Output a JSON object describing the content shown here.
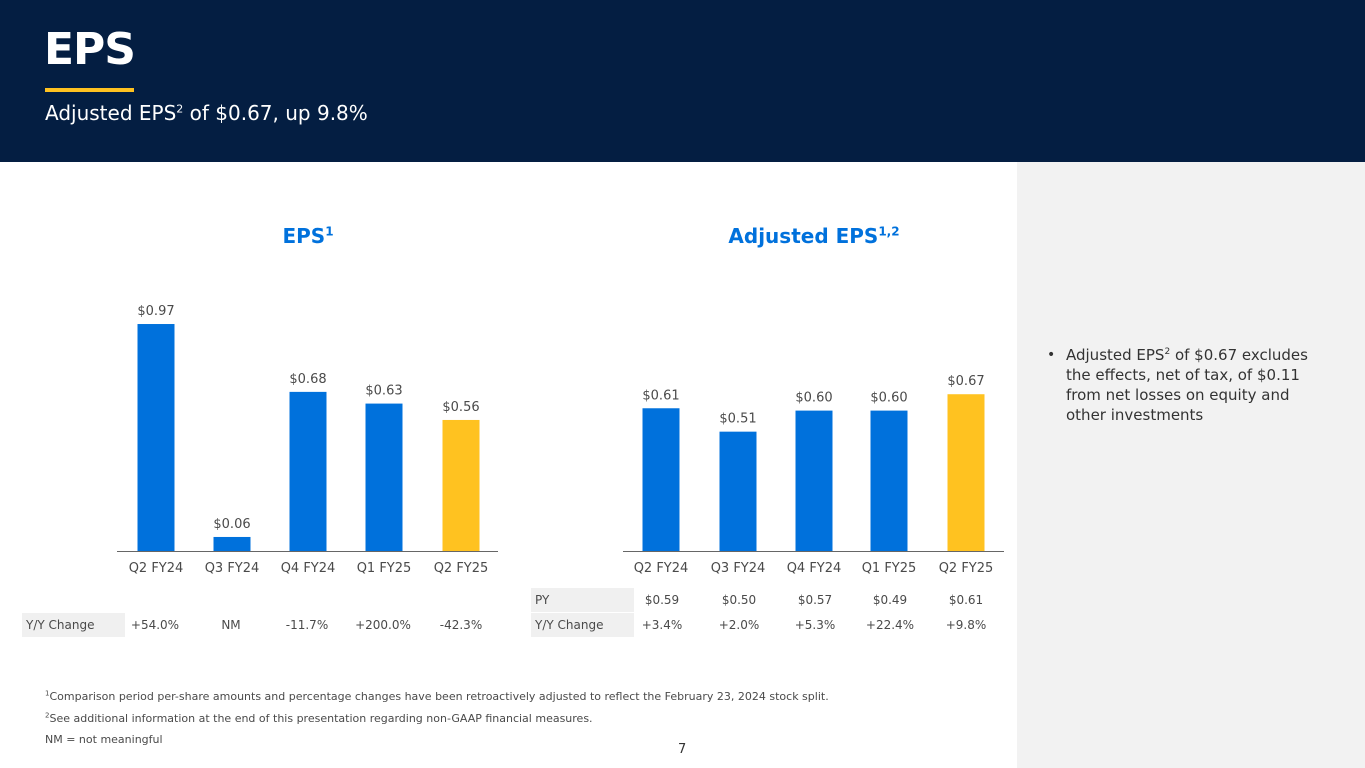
{
  "header": {
    "title": "EPS",
    "subtitle_pre": "Adjusted EPS",
    "subtitle_sup": "2",
    "subtitle_post": " of $0.67, up 9.8%"
  },
  "colors": {
    "navy": "#041e42",
    "blue": "#0071dc",
    "yellow": "#ffc220"
  },
  "chart_data": [
    {
      "type": "bar",
      "title": "EPS",
      "title_sup": "1",
      "categories": [
        "Q2 FY24",
        "Q3 FY24",
        "Q4 FY24",
        "Q1 FY25",
        "Q2 FY25"
      ],
      "values": [
        0.97,
        0.06,
        0.68,
        0.63,
        0.56
      ],
      "value_labels": [
        "$0.97",
        "$0.06",
        "$0.68",
        "$0.63",
        "$0.56"
      ],
      "highlight_index": 4,
      "ylim": [
        0,
        1.0
      ],
      "rows": [
        {
          "label": "Y/Y Change",
          "values": [
            "+54.0%",
            "NM",
            "-11.7%",
            "+200.0%",
            "-42.3%"
          ]
        }
      ]
    },
    {
      "type": "bar",
      "title": "Adjusted EPS",
      "title_sup": "1,2",
      "categories": [
        "Q2 FY24",
        "Q3 FY24",
        "Q4 FY24",
        "Q1 FY25",
        "Q2 FY25"
      ],
      "values": [
        0.61,
        0.51,
        0.6,
        0.6,
        0.67
      ],
      "value_labels": [
        "$0.61",
        "$0.51",
        "$0.60",
        "$0.60",
        "$0.67"
      ],
      "highlight_index": 4,
      "ylim": [
        0,
        1.0
      ],
      "rows": [
        {
          "label": "PY",
          "values": [
            "$0.59",
            "$0.50",
            "$0.57",
            "$0.49",
            "$0.61"
          ]
        },
        {
          "label": "Y/Y Change",
          "values": [
            "+3.4%",
            "+2.0%",
            "+5.3%",
            "+22.4%",
            "+9.8%"
          ]
        }
      ]
    }
  ],
  "sidebar": {
    "bullet_pre": "Adjusted EPS",
    "bullet_sup": "2",
    "bullet_post": " of $0.67 excludes the effects, net of tax, of $0.11 from net losses on equity and other investments"
  },
  "footnotes": {
    "note1_sup": "1",
    "note1": "Comparison period per-share amounts and percentage changes have been retroactively adjusted to reflect the February 23, 2024 stock split.",
    "note2_sup": "2",
    "note2": "See additional information at the end of this presentation regarding non-GAAP financial measures.",
    "note3": "NM = not meaningful"
  },
  "page_number": "7"
}
